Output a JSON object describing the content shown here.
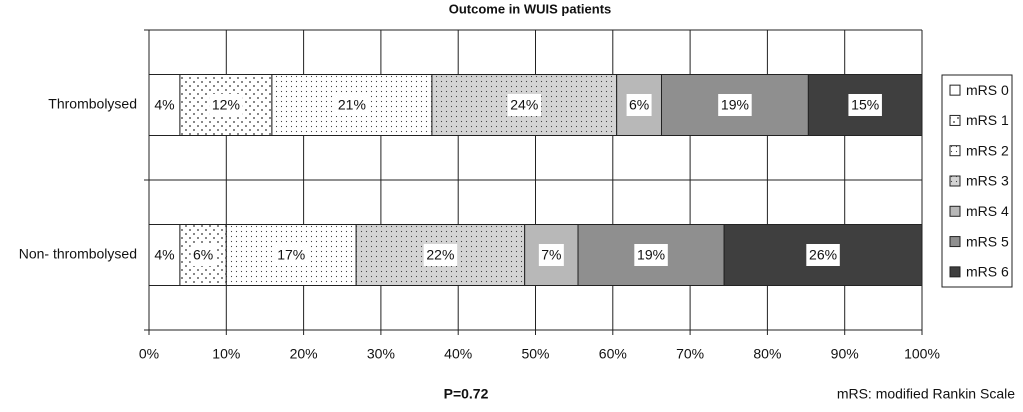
{
  "chart_data": {
    "type": "stacked-bar-horizontal",
    "title": "Outcome in WUIS patients",
    "categories": [
      "Thrombolysed",
      "Non- thrombolysed"
    ],
    "series": [
      {
        "name": "mRS 0",
        "color": "#ffffff",
        "pattern": "none",
        "values": [
          4.0,
          4.0
        ],
        "value_labels": [
          "4%",
          "4%"
        ]
      },
      {
        "name": "mRS 1",
        "color": "#ffffff",
        "pattern": "sparse-dots",
        "values": [
          11.9,
          6.0
        ],
        "value_labels": [
          "12%",
          "6%"
        ]
      },
      {
        "name": "mRS 2",
        "color": "#ffffff",
        "pattern": "fine-dots",
        "values": [
          20.7,
          16.8
        ],
        "value_labels": [
          "21%",
          "17%"
        ]
      },
      {
        "name": "mRS 3",
        "color": "#d4d4d4",
        "pattern": "fine-dots",
        "values": [
          23.9,
          21.8
        ],
        "value_labels": [
          "24%",
          "22%"
        ]
      },
      {
        "name": "mRS 4",
        "color": "#b8b8b8",
        "pattern": "none",
        "values": [
          5.8,
          6.9
        ],
        "value_labels": [
          "6%",
          "7%"
        ]
      },
      {
        "name": "mRS 5",
        "color": "#8f8f8f",
        "pattern": "none",
        "values": [
          19.0,
          18.9
        ],
        "value_labels": [
          "19%",
          "19%"
        ]
      },
      {
        "name": "mRS 6",
        "color": "#3f3f3f",
        "pattern": "none",
        "values": [
          14.7,
          25.6
        ],
        "value_labels": [
          "15%",
          "26%"
        ]
      }
    ],
    "xlim": [
      0,
      100
    ],
    "xticks": [
      {
        "value": 0,
        "label": "0%"
      },
      {
        "value": 10,
        "label": "10%"
      },
      {
        "value": 20,
        "label": "20%"
      },
      {
        "value": 30,
        "label": "30%"
      },
      {
        "value": 40,
        "label": "40%"
      },
      {
        "value": 50,
        "label": "50%"
      },
      {
        "value": 60,
        "label": "60%"
      },
      {
        "value": 70,
        "label": "70%"
      },
      {
        "value": 80,
        "label": "80%"
      },
      {
        "value": 90,
        "label": "90%"
      },
      {
        "value": 100,
        "label": "100%"
      }
    ],
    "grid": true,
    "legend": "right",
    "annotations": [
      "P=0.72",
      "mRS:  modified Rankin Scale"
    ]
  }
}
